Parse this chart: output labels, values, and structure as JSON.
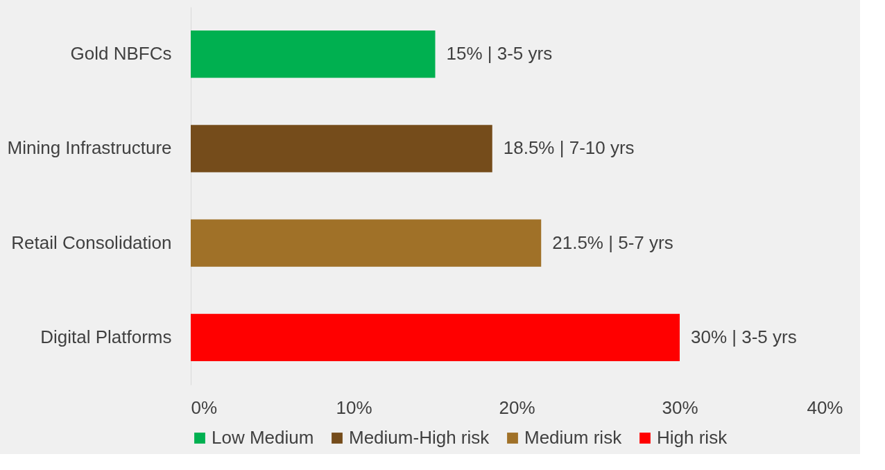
{
  "chart_data": {
    "type": "bar",
    "orientation": "horizontal",
    "categories": [
      "Gold NBFCs",
      "Mining Infrastructure",
      "Retail Consolidation",
      "Digital Platforms"
    ],
    "series": [
      {
        "name": "Low Medium",
        "color": "#00b050",
        "values": [
          15,
          null,
          null,
          null
        ],
        "value_labels": [
          "15% | 3-5 yrs",
          null,
          null,
          null
        ]
      },
      {
        "name": "Medium-High risk",
        "color": "#754c1b",
        "values": [
          null,
          18.5,
          null,
          null
        ],
        "value_labels": [
          null,
          "18.5% | 7-10 yrs",
          null,
          null
        ]
      },
      {
        "name": "Medium risk",
        "color": "#a07128",
        "values": [
          null,
          null,
          21.5,
          null
        ],
        "value_labels": [
          null,
          null,
          "21.5% | 5-7 yrs",
          null
        ]
      },
      {
        "name": "High risk",
        "color": "#ff0000",
        "values": [
          null,
          null,
          null,
          30
        ],
        "value_labels": [
          null,
          null,
          null,
          "30% | 3-5 yrs"
        ]
      }
    ],
    "xlim": [
      0,
      40
    ],
    "xticks": [
      {
        "value": 0,
        "label": "0%"
      },
      {
        "value": 10,
        "label": "10%"
      },
      {
        "value": 20,
        "label": "20%"
      },
      {
        "value": 30,
        "label": "30%"
      },
      {
        "value": 40,
        "label": "40%"
      }
    ],
    "grid": false,
    "legend": "bottom"
  }
}
